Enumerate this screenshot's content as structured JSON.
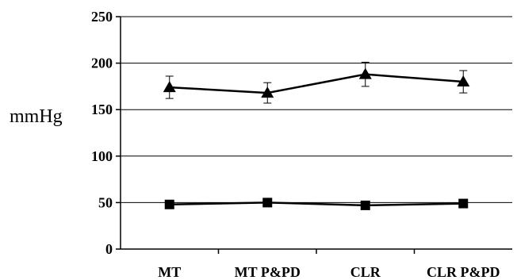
{
  "chart_data": {
    "type": "line",
    "ylabel": "mmHg",
    "xlabel": "",
    "title": "",
    "categories": [
      "MT",
      "MT P&PD",
      "CLR",
      "CLR P&PD"
    ],
    "ylim": [
      0,
      250
    ],
    "yticks": [
      "0",
      "50",
      "100",
      "150",
      "200",
      "250"
    ],
    "grid": true,
    "legend": "none",
    "series": [
      {
        "marker": "triangle",
        "color": "#000000",
        "values": [
          174,
          168,
          188,
          180
        ],
        "error": [
          12,
          11,
          13,
          12
        ]
      },
      {
        "marker": "square",
        "color": "#000000",
        "values": [
          48,
          50,
          47,
          49
        ],
        "error": [
          0,
          0,
          0,
          0
        ]
      }
    ]
  }
}
